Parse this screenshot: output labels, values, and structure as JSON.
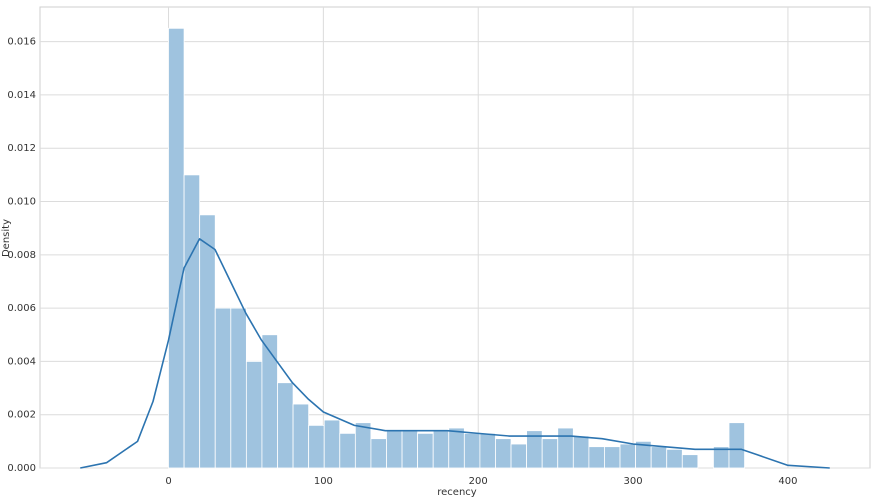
{
  "chart_data": {
    "type": "histogram",
    "xlabel": "recency",
    "ylabel": "Density",
    "bins": [
      0,
      10.05,
      20.11,
      30.16,
      40.22,
      50.27,
      60.32,
      70.38,
      80.43,
      90.49,
      100.54,
      110.59,
      120.65,
      130.7,
      140.76,
      150.81,
      160.86,
      170.92,
      180.97,
      191.03,
      201.08,
      211.14,
      221.19,
      231.24,
      241.3,
      251.35,
      261.41,
      271.46,
      281.51,
      291.57,
      301.62,
      311.68,
      321.73,
      331.78,
      341.84,
      351.89,
      361.95,
      372.0
    ],
    "values": [
      0.0165,
      0.011,
      0.0095,
      0.006,
      0.006,
      0.004,
      0.005,
      0.0032,
      0.0024,
      0.0016,
      0.0018,
      0.0013,
      0.0017,
      0.0011,
      0.0014,
      0.0014,
      0.0013,
      0.0014,
      0.0015,
      0.0013,
      0.0013,
      0.0011,
      0.0009,
      0.0014,
      0.0011,
      0.0015,
      0.0012,
      0.0008,
      0.0008,
      0.0009,
      0.001,
      0.0008,
      0.0007,
      0.0005,
      0,
      0.0008,
      0.0017
    ],
    "color": "#9fc3df",
    "kde": {
      "color": "#2c74b0",
      "x": [
        -57,
        -40,
        -20,
        -10,
        0,
        10,
        20,
        30,
        40,
        50,
        60,
        70,
        80,
        90,
        100,
        120,
        140,
        160,
        180,
        200,
        220,
        240,
        260,
        280,
        300,
        320,
        340,
        360,
        370,
        380,
        400,
        427
      ],
      "y": [
        0,
        0.0002,
        0.001,
        0.0025,
        0.0048,
        0.0075,
        0.0086,
        0.0082,
        0.007,
        0.0058,
        0.0048,
        0.004,
        0.0032,
        0.0026,
        0.0021,
        0.0016,
        0.0014,
        0.0014,
        0.0014,
        0.0013,
        0.0012,
        0.0012,
        0.0012,
        0.0011,
        0.0009,
        0.0008,
        0.0007,
        0.0007,
        0.0007,
        0.0005,
        0.0001,
        0
      ]
    },
    "xlim": [
      -83,
      453
    ],
    "ylim": [
      0,
      0.0173
    ],
    "xticks": [
      0,
      100,
      200,
      300,
      400
    ],
    "yticks": [
      {
        "value": 0,
        "label": "0.000"
      },
      {
        "value": 0.002,
        "label": "0.002"
      },
      {
        "value": 0.004,
        "label": "0.004"
      },
      {
        "value": 0.006,
        "label": "0.006"
      },
      {
        "value": 0.008,
        "label": "0.008"
      },
      {
        "value": 0.01,
        "label": "0.010"
      },
      {
        "value": 0.012,
        "label": "0.012"
      },
      {
        "value": 0.014,
        "label": "0.014"
      },
      {
        "value": 0.016,
        "label": "0.016"
      }
    ],
    "grid": true
  }
}
